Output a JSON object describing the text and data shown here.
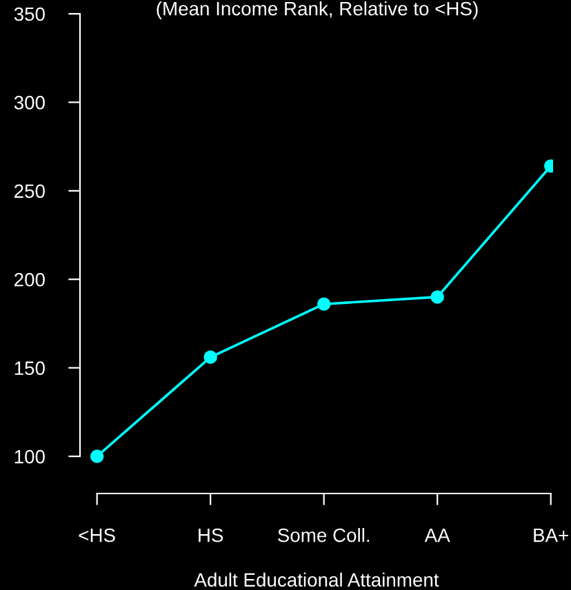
{
  "chart_data": {
    "type": "line",
    "title": "(Mean Income Rank, Relative to <HS)",
    "xlabel": "Adult Educational Attainment",
    "categories": [
      "<HS",
      "HS",
      "Some Coll.",
      "AA",
      "BA+"
    ],
    "series": [
      {
        "color": "#00ffff",
        "values": [
          100,
          156,
          186,
          190,
          264
        ]
      }
    ],
    "marker": "circle",
    "line_style": "solid",
    "grid": false,
    "legend": false,
    "ylim": [
      79,
      350
    ],
    "yticks": [
      100,
      150,
      200,
      250,
      300,
      350
    ]
  }
}
